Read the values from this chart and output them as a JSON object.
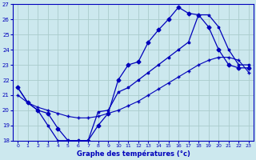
{
  "xlabel": "Graphe des températures (°c)",
  "xlim": [
    -0.5,
    23.5
  ],
  "ylim": [
    18,
    27
  ],
  "yticks": [
    18,
    19,
    20,
    21,
    22,
    23,
    24,
    25,
    26,
    27
  ],
  "xticks": [
    0,
    1,
    2,
    3,
    4,
    5,
    6,
    7,
    8,
    9,
    10,
    11,
    12,
    13,
    14,
    15,
    16,
    17,
    18,
    19,
    20,
    21,
    22,
    23
  ],
  "bg_color": "#cce8ee",
  "line_color": "#0000bb",
  "grid_color": "#aacccc",
  "line1_x": [
    0,
    1,
    2,
    3,
    4,
    5,
    6,
    7,
    8,
    9,
    10,
    11,
    12,
    13,
    14,
    15,
    16,
    17,
    18,
    19,
    20,
    21,
    22,
    23
  ],
  "line1_y": [
    21.5,
    20.5,
    20.0,
    19.8,
    18.8,
    18.0,
    18.0,
    18.0,
    19.0,
    19.8,
    22.0,
    23.0,
    23.2,
    24.5,
    25.3,
    26.0,
    26.8,
    26.4,
    26.3,
    25.5,
    24.0,
    23.0,
    22.8,
    22.8
  ],
  "line2_x": [
    0,
    1,
    2,
    3,
    4,
    5,
    6,
    7,
    8,
    9,
    10,
    11,
    12,
    13,
    14,
    15,
    16,
    17,
    18,
    19,
    20,
    21,
    22,
    23
  ],
  "line2_y": [
    21.0,
    20.5,
    20.2,
    20.0,
    19.8,
    19.6,
    19.5,
    19.5,
    19.6,
    19.8,
    20.0,
    20.3,
    20.6,
    21.0,
    21.4,
    21.8,
    22.2,
    22.6,
    23.0,
    23.3,
    23.5,
    23.5,
    23.3,
    22.5
  ],
  "line3_x": [
    0,
    1,
    2,
    3,
    4,
    5,
    6,
    7,
    8,
    9,
    10,
    11,
    12,
    13,
    14,
    15,
    16,
    17,
    18,
    19,
    20,
    21,
    22,
    23
  ],
  "line3_y": [
    21.5,
    20.5,
    20.0,
    19.0,
    18.0,
    18.0,
    18.0,
    18.0,
    19.9,
    20.0,
    21.2,
    21.5,
    22.0,
    22.5,
    23.0,
    23.5,
    24.0,
    24.5,
    26.3,
    26.3,
    25.5,
    24.0,
    23.0,
    23.0
  ]
}
